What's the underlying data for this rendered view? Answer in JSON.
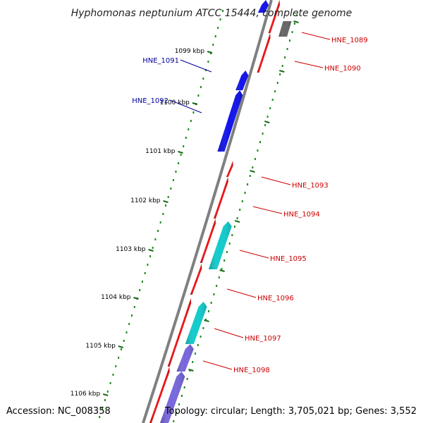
{
  "title": "Hyphomonas neptunium ATCC 15444, complete genome",
  "footer": {
    "accession": "Accession: NC_008358",
    "summary": "Topology: circular; Length: 3,705,021 bp; Genes: 3,552"
  },
  "colors": {
    "backbone": "#808080",
    "ruler_dot": "#1a8a1a",
    "ruler_tick": "#1a6a1a",
    "label_forward": "#cc0000",
    "label_reverse": "#000099"
  },
  "ticks": [
    "1099 kbp",
    "1100 kbp",
    "1101 kbp",
    "1102 kbp",
    "1103 kbp",
    "1104 kbp",
    "1105 kbp",
    "1106 kbp"
  ],
  "genes": [
    {
      "label": "HNE_1089",
      "color": "#cc0000"
    },
    {
      "label": "HNE_1090",
      "color": "#cc0000"
    },
    {
      "label": "HNE_1091",
      "color": "#000099"
    },
    {
      "label": "HNE_1092",
      "color": "#000099"
    },
    {
      "label": "HNE_1093",
      "color": "#cc0000"
    },
    {
      "label": "HNE_1094",
      "color": "#cc0000"
    },
    {
      "label": "HNE_1095",
      "color": "#cc0000"
    },
    {
      "label": "HNE_1096",
      "color": "#cc0000"
    },
    {
      "label": "HNE_1097",
      "color": "#cc0000"
    },
    {
      "label": "HNE_1098",
      "color": "#cc0000"
    }
  ],
  "features": [
    {
      "name": "feature-red-1",
      "color": "#ee1111"
    },
    {
      "name": "feature-red-2",
      "color": "#ee1111"
    },
    {
      "name": "feature-red-3",
      "color": "#ee1111"
    },
    {
      "name": "feature-red-4",
      "color": "#ee1111"
    },
    {
      "name": "feature-red-5",
      "color": "#ee1111"
    },
    {
      "name": "feature-red-6",
      "color": "#ee1111"
    },
    {
      "name": "feature-red-7",
      "color": "#ee1111"
    },
    {
      "name": "feature-red-8",
      "color": "#ee1111"
    },
    {
      "name": "feature-blue-1",
      "color": "#1111ee"
    },
    {
      "name": "feature-blue-2",
      "color": "#1111ee"
    },
    {
      "name": "feature-blue-top",
      "color": "#1111ee"
    },
    {
      "name": "feature-gray",
      "color": "#666666"
    },
    {
      "name": "feature-cyan-1",
      "color": "#11cccc"
    },
    {
      "name": "feature-cyan-2",
      "color": "#11cccc"
    },
    {
      "name": "feature-purple-1",
      "color": "#7766dd"
    },
    {
      "name": "feature-purple-2",
      "color": "#7766dd"
    }
  ]
}
